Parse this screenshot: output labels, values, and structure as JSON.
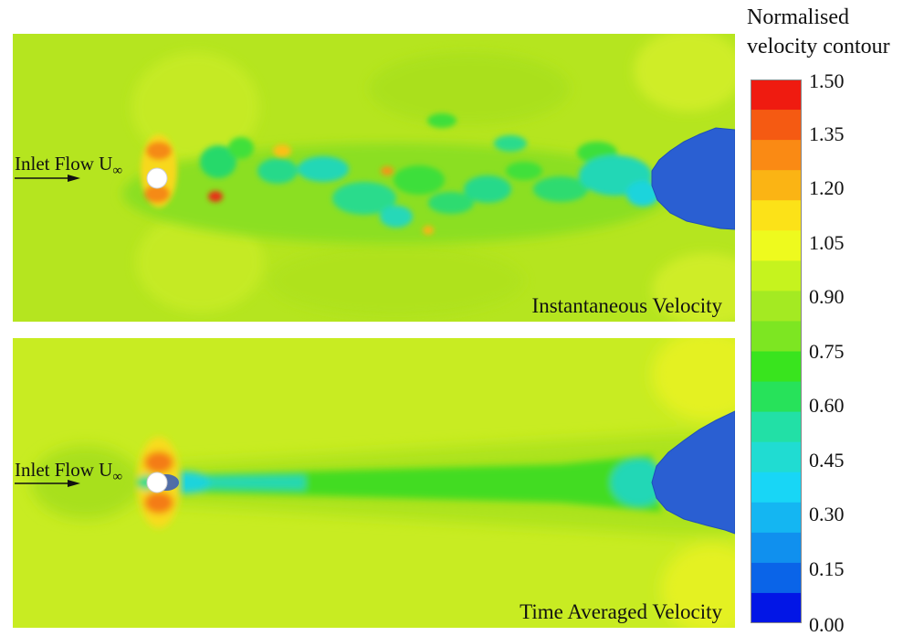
{
  "legend": {
    "title_line1": "Normalised",
    "title_line2": "velocity contour",
    "ticks": [
      "1.50",
      "1.35",
      "1.20",
      "1.05",
      "0.90",
      "0.75",
      "0.60",
      "0.45",
      "0.30",
      "0.15",
      "0.00"
    ],
    "band_colors": [
      "#ef1b10",
      "#f55a12",
      "#fa8a14",
      "#fbb414",
      "#fce218",
      "#eefa1e",
      "#c6f31e",
      "#a4ea22",
      "#7de622",
      "#39e41e",
      "#27e25a",
      "#22e0a6",
      "#20dcd2",
      "#18d6f6",
      "#14b6f2",
      "#1090ee",
      "#0a64e8",
      "#0216e6"
    ]
  },
  "panels": {
    "top": {
      "caption": "Instantaneous Velocity",
      "inlet_label": "Inlet Flow U",
      "inlet_subscript": "∞"
    },
    "bottom": {
      "caption": "Time Averaged Velocity",
      "inlet_label": "Inlet Flow U",
      "inlet_subscript": "∞"
    }
  },
  "colors": {
    "background_field": "#b4e51e",
    "wake": "#42dc22",
    "obstacle": "#2a5fd2",
    "cylinder": "#ffffff"
  }
}
